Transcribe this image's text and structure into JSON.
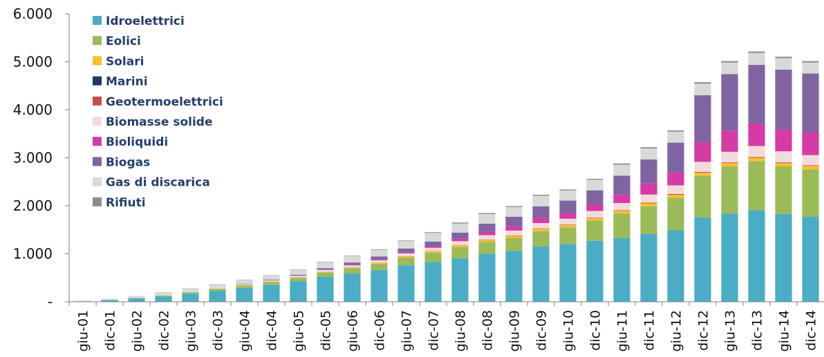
{
  "chart_data": {
    "type": "bar",
    "stacked": true,
    "title": "",
    "xlabel": "",
    "ylabel": "",
    "ylim": [
      0,
      6000
    ],
    "y_ticks": [
      0,
      1000,
      2000,
      3000,
      4000,
      5000,
      6000
    ],
    "y_tick_labels": [
      "-",
      "1.000",
      "2.000",
      "3.000",
      "4.000",
      "5.000",
      "6.000"
    ],
    "grid": false,
    "legend_position": "top-left",
    "categories": [
      "giu-01",
      "dic-01",
      "giu-02",
      "dic-02",
      "giu-03",
      "dic-03",
      "giu-04",
      "dic-04",
      "giu-05",
      "dic-05",
      "giu-06",
      "dic-06",
      "giu-07",
      "dic-07",
      "giu-08",
      "dic-08",
      "giu-09",
      "dic-09",
      "giu-10",
      "dic-10",
      "giu-11",
      "dic-11",
      "giu-12",
      "dic-12",
      "giu-13",
      "dic-13",
      "giu-14",
      "dic-14"
    ],
    "series": [
      {
        "name": "Idroelettrici",
        "color": "#4bacc6",
        "values": [
          10,
          35,
          70,
          110,
          170,
          230,
          290,
          350,
          430,
          520,
          590,
          660,
          760,
          820,
          910,
          1000,
          1060,
          1150,
          1200,
          1270,
          1330,
          1410,
          1490,
          1760,
          1840,
          1910,
          1830,
          1770
        ]
      },
      {
        "name": "Eolici",
        "color": "#9bbb59",
        "values": [
          2,
          5,
          10,
          20,
          30,
          40,
          50,
          60,
          70,
          90,
          110,
          130,
          160,
          200,
          230,
          250,
          270,
          320,
          350,
          420,
          510,
          580,
          680,
          870,
          980,
          1020,
          990,
          990
        ]
      },
      {
        "name": "Solari",
        "color": "#f9c02b",
        "values": [
          0,
          0,
          0,
          2,
          3,
          5,
          5,
          10,
          10,
          10,
          15,
          20,
          25,
          30,
          35,
          40,
          45,
          50,
          50,
          50,
          55,
          60,
          60,
          60,
          70,
          70,
          70,
          70
        ]
      },
      {
        "name": "Marini",
        "color": "#1f3864",
        "values": [
          0,
          0,
          0,
          0,
          0,
          0,
          0,
          0,
          0,
          0,
          0,
          0,
          0,
          0,
          0,
          0,
          0,
          0,
          0,
          0,
          0,
          0,
          0,
          0,
          0,
          0,
          0,
          0
        ]
      },
      {
        "name": "Geotermoelettrici",
        "color": "#c0504d",
        "values": [
          0,
          0,
          0,
          1,
          1,
          1,
          1,
          2,
          2,
          3,
          3,
          3,
          4,
          5,
          6,
          8,
          8,
          10,
          10,
          12,
          12,
          14,
          15,
          15,
          15,
          15,
          15,
          15
        ]
      },
      {
        "name": "Biomasse solide",
        "color": "#f2dcdb",
        "values": [
          0,
          2,
          5,
          8,
          10,
          15,
          20,
          25,
          30,
          40,
          40,
          50,
          60,
          70,
          80,
          90,
          100,
          110,
          120,
          140,
          150,
          170,
          180,
          210,
          220,
          230,
          230,
          210
        ]
      },
      {
        "name": "Bioliquidi",
        "color": "#d63aa5",
        "values": [
          0,
          0,
          0,
          0,
          0,
          0,
          0,
          0,
          0,
          5,
          10,
          20,
          30,
          40,
          50,
          70,
          90,
          110,
          120,
          130,
          170,
          230,
          270,
          410,
          440,
          460,
          450,
          470
        ]
      },
      {
        "name": "Biogas",
        "color": "#8064a2",
        "values": [
          0,
          0,
          0,
          0,
          0,
          0,
          10,
          15,
          20,
          30,
          50,
          60,
          70,
          90,
          130,
          170,
          200,
          240,
          260,
          300,
          400,
          500,
          620,
          980,
          1180,
          1230,
          1250,
          1230
        ]
      },
      {
        "name": "Gas di discarica",
        "color": "#d9d9d9",
        "values": [
          10,
          20,
          35,
          50,
          60,
          70,
          80,
          90,
          110,
          120,
          130,
          140,
          160,
          180,
          190,
          200,
          200,
          220,
          210,
          220,
          230,
          230,
          230,
          240,
          240,
          250,
          240,
          230
        ]
      },
      {
        "name": "Rifiuti",
        "color": "#8c8c8c",
        "values": [
          0,
          0,
          0,
          5,
          5,
          5,
          5,
          5,
          5,
          10,
          10,
          10,
          10,
          15,
          20,
          20,
          20,
          20,
          20,
          20,
          25,
          25,
          25,
          30,
          30,
          30,
          30,
          30
        ]
      }
    ]
  }
}
